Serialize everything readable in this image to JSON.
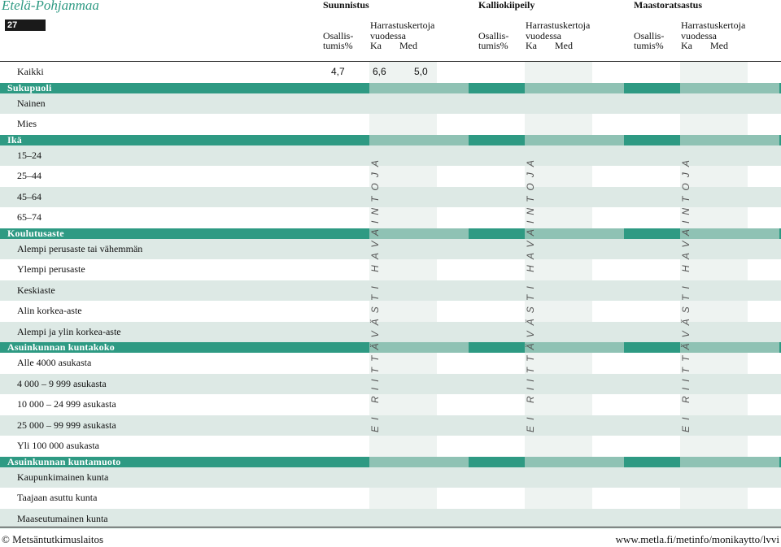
{
  "header": {
    "region": "Etelä-Pohjanmaa",
    "page_number": "27",
    "activities": [
      "Suunnistus",
      "Kalliokiipeily",
      "Maastoratsastus"
    ],
    "col_participation_line1": "Osallis-",
    "col_participation_line2": "tumis%",
    "col_frequency_line1": "Harrastuskertoja",
    "col_frequency_line2": "vuodessa",
    "col_mean": "Ka",
    "col_median": "Med"
  },
  "rows": [
    {
      "type": "data",
      "label": "Kaikki",
      "values": [
        "4,7",
        "6,6",
        "5,0"
      ]
    },
    {
      "type": "group",
      "label": "Sukupuoli"
    },
    {
      "type": "data",
      "label": "Nainen"
    },
    {
      "type": "data",
      "label": "Mies"
    },
    {
      "type": "group",
      "label": "Ikä"
    },
    {
      "type": "data",
      "label": "15–24"
    },
    {
      "type": "data",
      "label": "25–44"
    },
    {
      "type": "data",
      "label": "45–64"
    },
    {
      "type": "data",
      "label": "65–74"
    },
    {
      "type": "group",
      "label": "Koulutusaste"
    },
    {
      "type": "data",
      "label": "Alempi perusaste tai vähemmän"
    },
    {
      "type": "data",
      "label": "Ylempi perusaste"
    },
    {
      "type": "data",
      "label": "Keskiaste"
    },
    {
      "type": "data",
      "label": "Alin korkea-aste"
    },
    {
      "type": "data",
      "label": "Alempi ja ylin korkea-aste"
    },
    {
      "type": "group",
      "label": "Asuinkunnan kuntakoko"
    },
    {
      "type": "data",
      "label": "Alle 4000 asukasta"
    },
    {
      "type": "data",
      "label": "4 000 – 9 999 asukasta"
    },
    {
      "type": "data",
      "label": "10 000 – 24 999 asukasta"
    },
    {
      "type": "data",
      "label": "25 000 – 99 999 asukasta"
    },
    {
      "type": "data",
      "label": "Yli 100 000 asukasta"
    },
    {
      "type": "group",
      "label": "Asuinkunnan kuntamuoto"
    },
    {
      "type": "data",
      "label": "Kaupunkimainen kunta"
    },
    {
      "type": "data",
      "label": "Taajaan asuttu kunta"
    },
    {
      "type": "data",
      "label": "Maaseutumainen kunta"
    }
  ],
  "insufficient_data_note": "EI RIITTÄVÄSTI HAVAINTOJA",
  "footer": {
    "left": "© Metsäntutkimuslaitos",
    "right": "www.metla.fi/metinfo/monikaytto/lvvi"
  },
  "colors": {
    "group_band": "#2e9a83",
    "group_band_light": "#8fc2b4",
    "band_light": "#dde9e5",
    "cell_light": "#eef3f1"
  }
}
